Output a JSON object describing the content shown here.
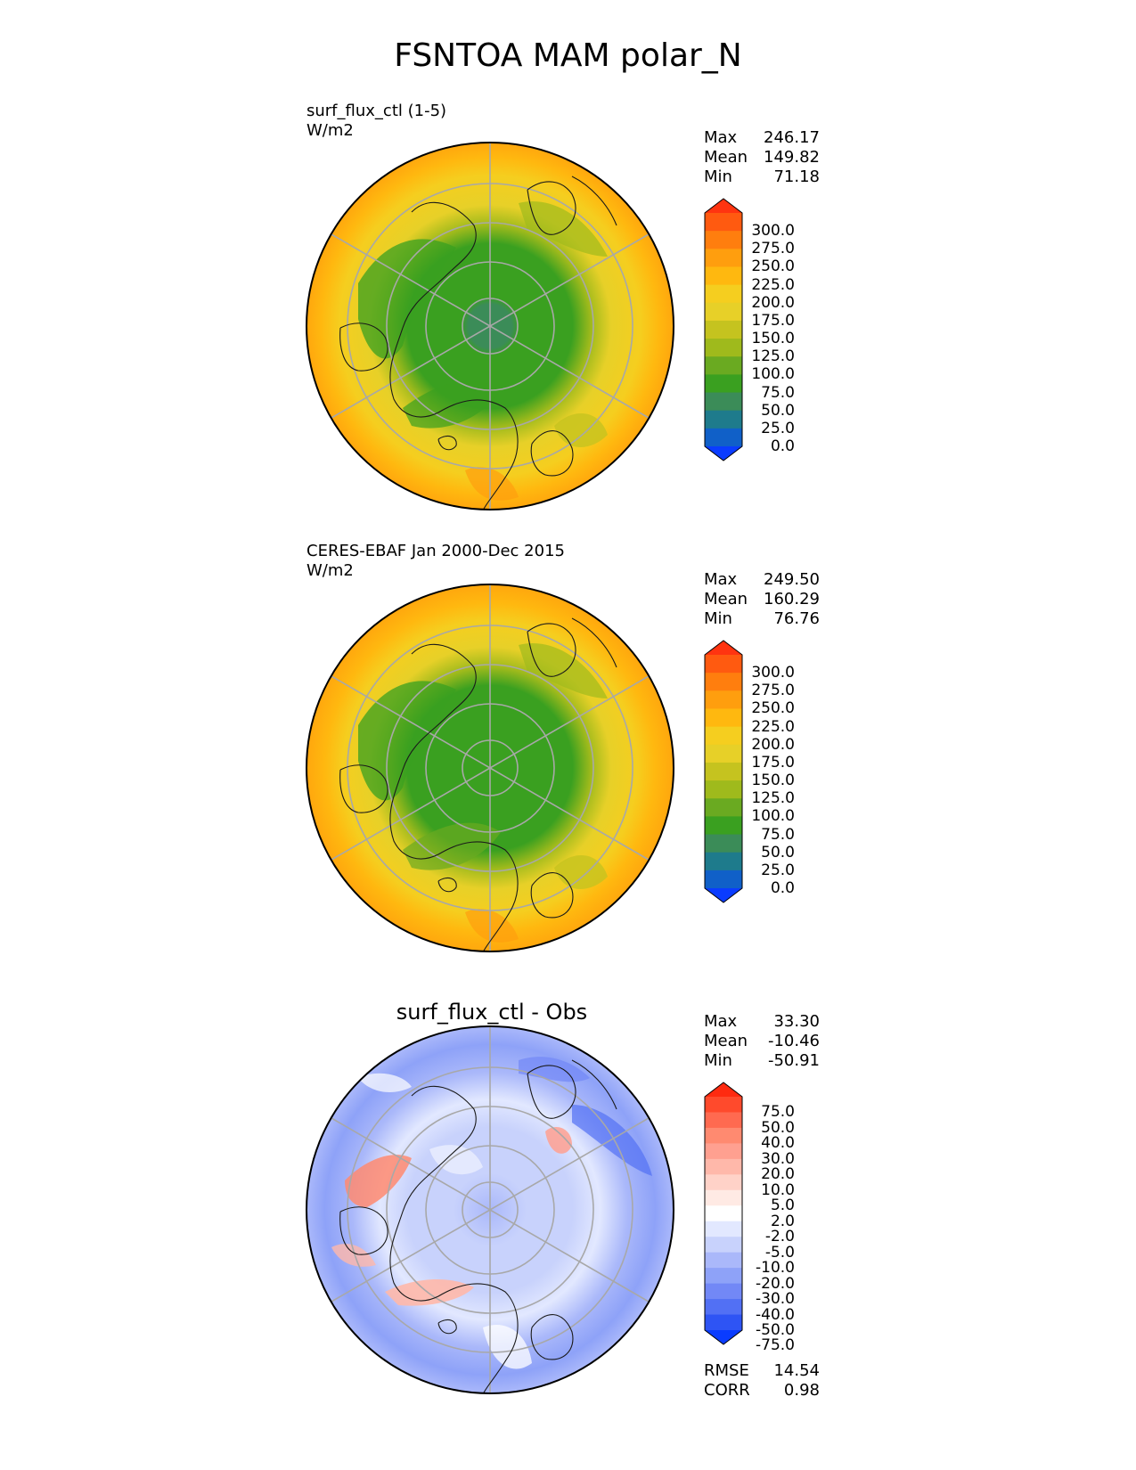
{
  "title": "FSNTOA MAM polar_N",
  "panels": [
    {
      "title": "surf_flux_ctl (1-5)",
      "units": "W/m2",
      "stats": {
        "max_label": "Max",
        "max": "246.17",
        "mean_label": "Mean",
        "mean": "149.82",
        "min_label": "Min",
        "min": "71.18"
      },
      "colorbar": {
        "levels": [
          "300.0",
          "275.0",
          "250.0",
          "225.0",
          "200.0",
          "175.0",
          "150.0",
          "125.0",
          "100.0",
          "75.0",
          "50.0",
          "25.0",
          "0.0"
        ],
        "colors": [
          "#ff3410",
          "#ff5a10",
          "#ff7e0e",
          "#ff9e0e",
          "#ffb80f",
          "#f5ce1f",
          "#e7d028",
          "#c5c31f",
          "#9fba1c",
          "#6aaa21",
          "#3aa020",
          "#3b8c58",
          "#1e7b8c",
          "#1060c8",
          "#0a3cff"
        ]
      }
    },
    {
      "title": "CERES-EBAF Jan 2000-Dec 2015",
      "units": "W/m2",
      "stats": {
        "max_label": "Max",
        "max": "249.50",
        "mean_label": "Mean",
        "mean": "160.29",
        "min_label": "Min",
        "min": "76.76"
      },
      "colorbar": {
        "levels": [
          "300.0",
          "275.0",
          "250.0",
          "225.0",
          "200.0",
          "175.0",
          "150.0",
          "125.0",
          "100.0",
          "75.0",
          "50.0",
          "25.0",
          "0.0"
        ],
        "colors": [
          "#ff3410",
          "#ff5a10",
          "#ff7e0e",
          "#ff9e0e",
          "#ffb80f",
          "#f5ce1f",
          "#e7d028",
          "#c5c31f",
          "#9fba1c",
          "#6aaa21",
          "#3aa020",
          "#3b8c58",
          "#1e7b8c",
          "#1060c8",
          "#0a3cff"
        ]
      }
    },
    {
      "title": "surf_flux_ctl - Obs",
      "stats": {
        "max_label": "Max",
        "max": "33.30",
        "mean_label": "Mean",
        "mean": "-10.46",
        "min_label": "Min",
        "min": "-50.91"
      },
      "colorbar": {
        "levels": [
          "75.0",
          "50.0",
          "40.0",
          "30.0",
          "20.0",
          "10.0",
          "5.0",
          "2.0",
          "-2.0",
          "-5.0",
          "-10.0",
          "-20.0",
          "-30.0",
          "-40.0",
          "-50.0",
          "-75.0"
        ],
        "colors": [
          "#ff2a10",
          "#ff4a2c",
          "#ff6a50",
          "#ff8a70",
          "#ffa090",
          "#ffb8aa",
          "#ffd2c8",
          "#ffeae4",
          "#ffffff",
          "#e2e8ff",
          "#c8d2fc",
          "#aab8fa",
          "#8ea2f8",
          "#7288f6",
          "#5270f4",
          "#2e54f4",
          "#0a3cff"
        ]
      },
      "metrics": {
        "rmse_label": "RMSE",
        "rmse": "14.54",
        "corr_label": "CORR",
        "corr": "0.98"
      }
    }
  ],
  "chart_data": [
    {
      "type": "heatmap",
      "projection": "north polar stereographic",
      "title": "surf_flux_ctl (1-5)",
      "units": "W/m2",
      "max": 246.17,
      "mean": 149.82,
      "min": 71.18,
      "levels": [
        0,
        25,
        50,
        75,
        100,
        125,
        150,
        175,
        200,
        225,
        250,
        275,
        300
      ],
      "extend": "both"
    },
    {
      "type": "heatmap",
      "projection": "north polar stereographic",
      "title": "CERES-EBAF Jan 2000-Dec 2015",
      "units": "W/m2",
      "max": 249.5,
      "mean": 160.29,
      "min": 76.76,
      "levels": [
        0,
        25,
        50,
        75,
        100,
        125,
        150,
        175,
        200,
        225,
        250,
        275,
        300
      ],
      "extend": "both"
    },
    {
      "type": "heatmap",
      "projection": "north polar stereographic",
      "title": "surf_flux_ctl - Obs",
      "max": 33.3,
      "mean": -10.46,
      "min": -50.91,
      "rmse": 14.54,
      "corr": 0.98,
      "levels": [
        -75,
        -50,
        -40,
        -30,
        -20,
        -10,
        -5,
        -2,
        2,
        5,
        10,
        20,
        30,
        40,
        50,
        75
      ],
      "extend": "both"
    }
  ]
}
